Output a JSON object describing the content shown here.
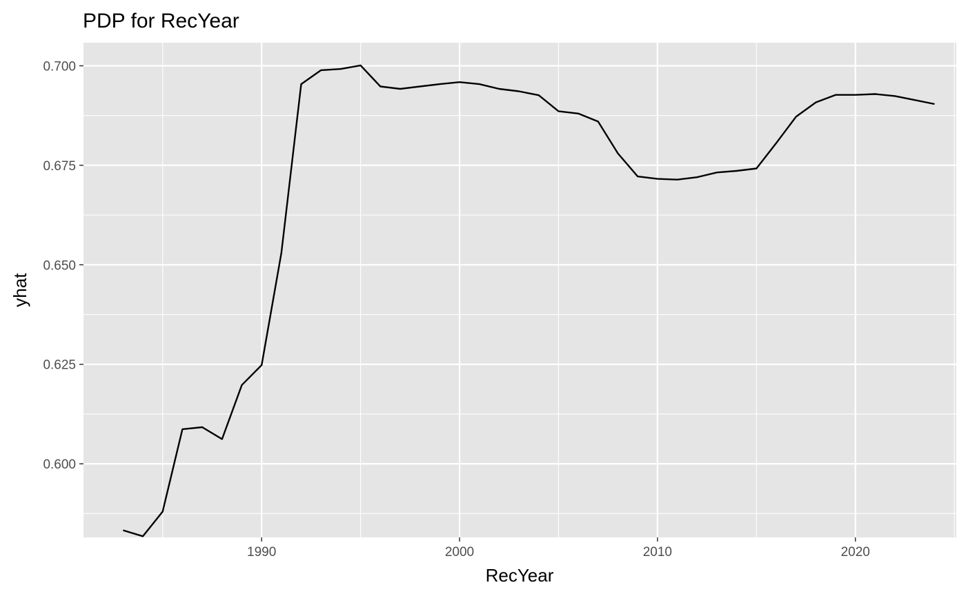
{
  "chart_data": {
    "type": "line",
    "title": "PDP for RecYear",
    "xlabel": "RecYear",
    "ylabel": "yhat",
    "xlim": [
      1981.0,
      2025.1
    ],
    "ylim": [
      0.5815,
      0.7058
    ],
    "x_ticks": [
      1990,
      2000,
      2010,
      2020
    ],
    "x_tick_labels": [
      "1990",
      "2000",
      "2010",
      "2020"
    ],
    "x_minor_ticks": [
      1985,
      1995,
      2005,
      2015,
      2025
    ],
    "y_ticks": [
      0.6,
      0.625,
      0.65,
      0.675,
      0.7
    ],
    "y_tick_labels": [
      "0.600",
      "0.625",
      "0.650",
      "0.675",
      "0.700"
    ],
    "y_minor_ticks": [
      0.5875,
      0.6125,
      0.6375,
      0.6625,
      0.6875
    ],
    "grid": true,
    "panel_color": "#e5e5e5",
    "grid_color": "#ffffff",
    "line_color": "#000000",
    "series": [
      {
        "x": [
          1983,
          1984,
          1985,
          1986,
          1987,
          1988,
          1989,
          1990,
          1991,
          1992,
          1993,
          1994,
          1995,
          1996,
          1997,
          1998,
          1999,
          2000,
          2001,
          2002,
          2003,
          2004,
          2005,
          2006,
          2007,
          2008,
          2009,
          2010,
          2011,
          2012,
          2013,
          2014,
          2015,
          2016,
          2017,
          2018,
          2019,
          2020,
          2021,
          2022,
          2023,
          2024
        ],
        "y": [
          0.5833,
          0.5818,
          0.588,
          0.6087,
          0.6092,
          0.6062,
          0.6198,
          0.6248,
          0.653,
          0.6954,
          0.6989,
          0.6992,
          0.7001,
          0.6948,
          0.6942,
          0.6948,
          0.6954,
          0.6959,
          0.6954,
          0.6942,
          0.6936,
          0.6926,
          0.6886,
          0.688,
          0.686,
          0.678,
          0.6722,
          0.6716,
          0.6714,
          0.672,
          0.6732,
          0.6736,
          0.6742,
          0.6806,
          0.6872,
          0.6908,
          0.6927,
          0.6927,
          0.6929,
          0.6924,
          0.6914,
          0.6904
        ]
      }
    ]
  }
}
